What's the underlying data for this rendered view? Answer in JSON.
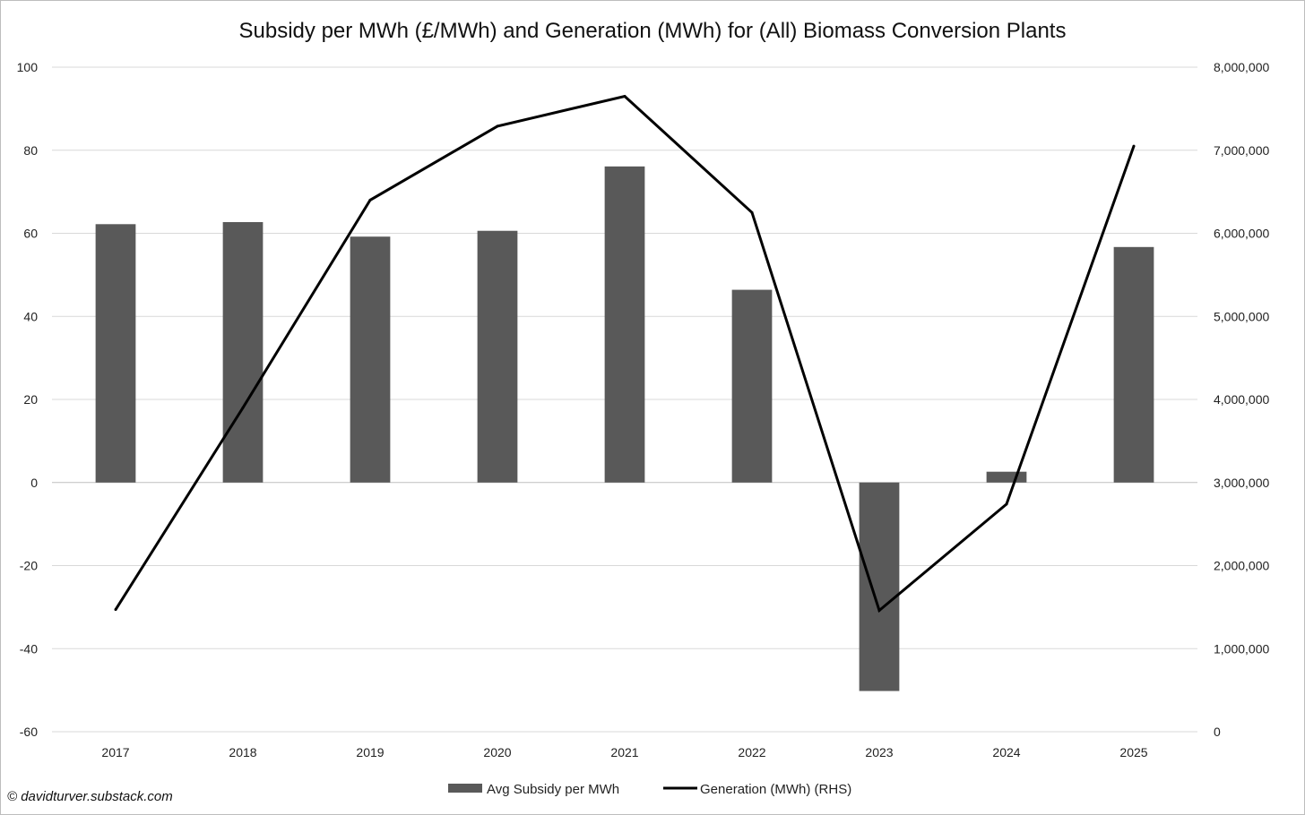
{
  "chart_data": {
    "type": "bar+line",
    "title": "Subsidy per MWh (£/MWh) and Generation (MWh) for (All) Biomass Conversion Plants",
    "categories": [
      "2017",
      "2018",
      "2019",
      "2020",
      "2021",
      "2022",
      "2023",
      "2024",
      "2025"
    ],
    "series": [
      {
        "name": "Avg Subsidy per MWh",
        "type": "bar",
        "axis": "left",
        "color": "#595959",
        "values": [
          62.2,
          62.7,
          59.2,
          60.6,
          76.1,
          46.4,
          -50.2,
          2.6,
          56.7
        ]
      },
      {
        "name": "Generation (MWh) (RHS)",
        "type": "line",
        "axis": "right",
        "color": "#000000",
        "values": [
          1470000,
          3900000,
          6400000,
          7290000,
          7650000,
          6250000,
          1460000,
          2740000,
          7050000
        ]
      }
    ],
    "left_axis": {
      "min": -60,
      "max": 100,
      "ticks": [
        100,
        80,
        60,
        40,
        20,
        0,
        -20,
        -40,
        -60
      ],
      "tick_labels": [
        "100",
        "80",
        "60",
        "40",
        "20",
        "0",
        "-20",
        "-40",
        "-60"
      ]
    },
    "right_axis": {
      "min": 0,
      "max": 8000000,
      "ticks": [
        8000000,
        7000000,
        6000000,
        5000000,
        4000000,
        3000000,
        2000000,
        1000000,
        0
      ],
      "tick_labels": [
        "8,000,000",
        "7,000,000",
        "6,000,000",
        "5,000,000",
        "4,000,000",
        "3,000,000",
        "2,000,000",
        "1,000,000",
        "0"
      ]
    },
    "grid": true,
    "legend": "bottom",
    "xlabel": "",
    "ylabel": "",
    "y2label": ""
  },
  "credit": "© davidturver.substack.com"
}
